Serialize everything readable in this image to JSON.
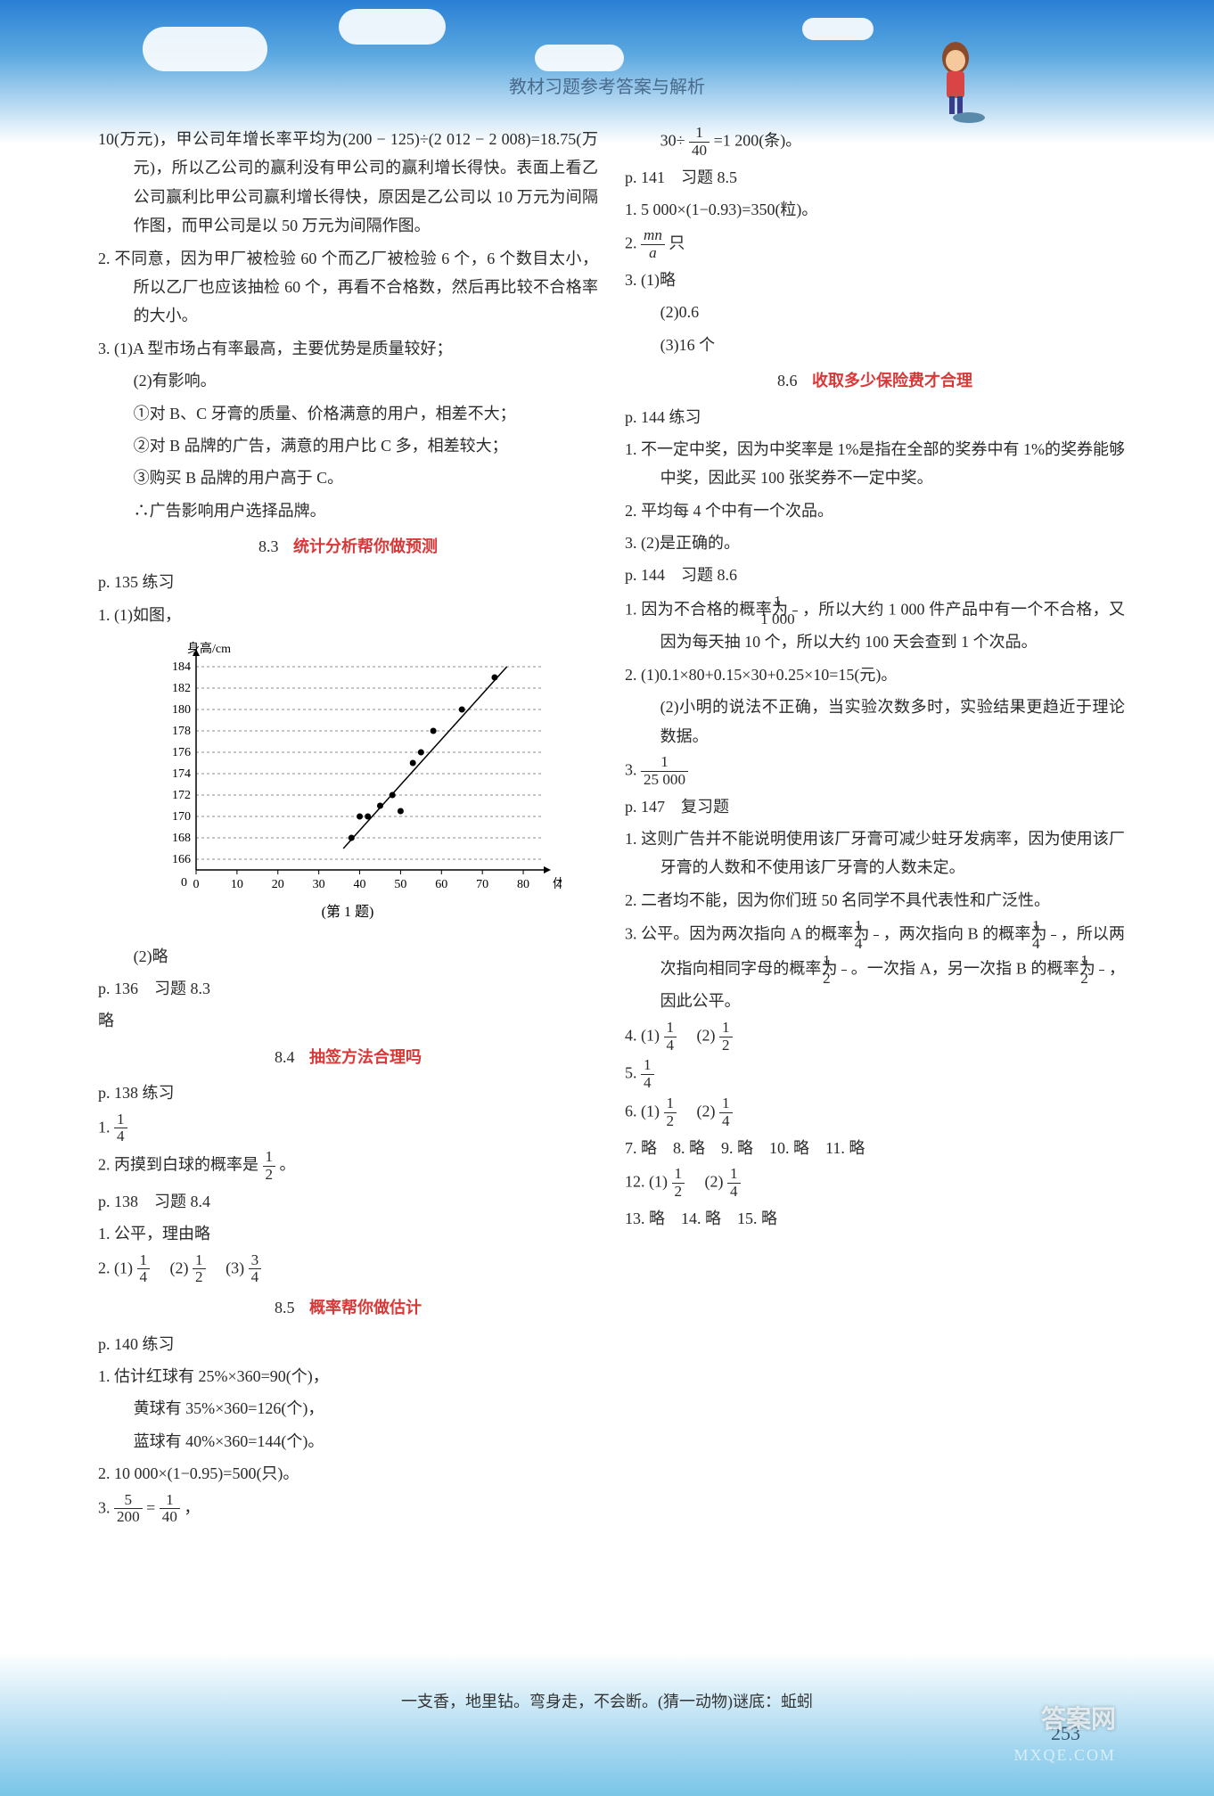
{
  "header": {
    "title": "教材习题参考答案与解析"
  },
  "left": {
    "p1": "10(万元)，甲公司年增长率平均为(200 − 125)÷(2 012 − 2 008)=18.75(万元)，所以乙公司的赢利没有甲公司的赢利增长得快。表面上看乙公司赢利比甲公司赢利增长得快，原因是乙公司以 10 万元为间隔作图，而甲公司是以 50 万元为间隔作图。",
    "p2": "2. 不同意，因为甲厂被检验 60 个而乙厂被检验 6 个，6 个数目太小，所以乙厂也应该抽检 60 个，再看不合格数，然后再比较不合格率的大小。",
    "p3a": "3. (1)A 型市场占有率最高，主要优势是质量较好；",
    "p3b": "(2)有影响。",
    "p3c": "①对 B、C 牙膏的质量、价格满意的用户，相差不大；",
    "p3d": "②对 B 品牌的广告，满意的用户比 C 多，相差较大；",
    "p3e": "③购买 B 品牌的用户高于 C。",
    "p3f": "∴广告影响用户选择品牌。",
    "sec83_num": "8.3",
    "sec83_name": "统计分析帮你做预测",
    "p135": "p. 135 练习",
    "p135_1": "1. (1)如图，",
    "chart": {
      "type": "scatter",
      "ylabel": "身高/cm",
      "xlabel": "体重/kg",
      "caption": "(第 1 题)",
      "y_ticks": [
        166,
        168,
        170,
        172,
        174,
        176,
        178,
        180,
        182,
        184
      ],
      "x_ticks": [
        0,
        10,
        20,
        30,
        40,
        50,
        60,
        70,
        80
      ],
      "ylim": [
        165,
        185
      ],
      "xlim": [
        0,
        85
      ],
      "points": [
        [
          38,
          168
        ],
        [
          40,
          170
        ],
        [
          42,
          170
        ],
        [
          45,
          171
        ],
        [
          48,
          172
        ],
        [
          50,
          170.5
        ],
        [
          53,
          175
        ],
        [
          55,
          176
        ],
        [
          58,
          178
        ],
        [
          65,
          180
        ],
        [
          73,
          183
        ]
      ],
      "line": [
        [
          36,
          167
        ],
        [
          76,
          184
        ]
      ],
      "axis_color": "#000000",
      "point_color": "#000000",
      "line_color": "#000000",
      "background": "#ffffff",
      "label_fontsize": 14
    },
    "p135_2": "(2)略",
    "p136": "p. 136　习题 8.3",
    "p136_a": "略",
    "sec84_num": "8.4",
    "sec84_name": "抽签方法合理吗",
    "p138a": "p. 138 练习",
    "p138_1_pre": "1. ",
    "p138_1_num": "1",
    "p138_1_den": "4",
    "p138_2_pre": "2. 丙摸到白球的概率是",
    "p138_2_num": "1",
    "p138_2_den": "2",
    "p138_2_post": "。",
    "p138b": "p. 138　习题 8.4",
    "p138b_1": "1. 公平，理由略",
    "p138b_2_pre": "2. (1)",
    "p138b_2a_n": "1",
    "p138b_2a_d": "4",
    "p138b_2b_pre": "(2)",
    "p138b_2b_n": "1",
    "p138b_2b_d": "2",
    "p138b_2c_pre": "(3)",
    "p138b_2c_n": "3",
    "p138b_2c_d": "4",
    "sec85_num": "8.5",
    "sec85_name": "概率帮你做估计",
    "p140": "p. 140 练习",
    "p140_1a": "1. 估计红球有 25%×360=90(个)，",
    "p140_1b": "黄球有 35%×360=126(个)，",
    "p140_1c": "蓝球有 40%×360=144(个)。",
    "p140_2": "2. 10 000×(1−0.95)=500(只)。",
    "p140_3_pre": "3. ",
    "p140_3a_n": "5",
    "p140_3a_d": "200",
    "p140_3_mid": "=",
    "p140_3b_n": "1",
    "p140_3b_d": "40",
    "p140_3_post": "，"
  },
  "right": {
    "r0_pre": "30÷",
    "r0_n": "1",
    "r0_d": "40",
    "r0_post": "=1 200(条)。",
    "p141": "p. 141　习题 8.5",
    "p141_1": "1. 5 000×(1−0.93)=350(粒)。",
    "p141_2_pre": "2. ",
    "p141_2_n": "mn",
    "p141_2_d": "a",
    "p141_2_post": "只",
    "p141_3a": "3. (1)略",
    "p141_3b": "(2)0.6",
    "p141_3c": "(3)16 个",
    "sec86_num": "8.6",
    "sec86_name": "收取多少保险费才合理",
    "p144a": "p. 144 练习",
    "p144_1": "1. 不一定中奖，因为中奖率是 1%是指在全部的奖券中有 1%的奖券能够中奖，因此买 100 张奖券不一定中奖。",
    "p144_2": "2. 平均每 4 个中有一个次品。",
    "p144_3": "3. (2)是正确的。",
    "p144b": "p. 144　习题 8.6",
    "p144b_1_pre": "1. 因为不合格的概率为",
    "p144b_1a_n": "1",
    "p144b_1a_d": "1 000",
    "p144b_1_mid": "，所以大约 1 000 件产品中有一个不合格，又因为每天抽 10 个，所以大约 100 天会查到 1 个次品。",
    "p144b_2a": "2. (1)0.1×80+0.15×30+0.25×10=15(元)。",
    "p144b_2b": "(2)小明的说法不正确，当实验次数多时，实验结果更趋近于理论数据。",
    "p144b_3_pre": "3. ",
    "p144b_3_n": "1",
    "p144b_3_d": "25 000",
    "p147": "p. 147　复习题",
    "p147_1": "1. 这则广告并不能说明使用该厂牙膏可减少蛀牙发病率，因为使用该厂牙膏的人数和不使用该厂牙膏的人数未定。",
    "p147_2": "2. 二者均不能，因为你们班 50 名同学不具代表性和广泛性。",
    "p147_3_a": "3. 公平。因为两次指向 A 的概率为",
    "p147_3_an": "1",
    "p147_3_ad": "4",
    "p147_3_b": "，两次指向 B 的概率为",
    "p147_3_bn": "1",
    "p147_3_bd": "4",
    "p147_3_c": "，所以两次指向相同字母的概率为",
    "p147_3_cn": "1",
    "p147_3_cd": "2",
    "p147_3_d": "。一次指 A，另一次指 B 的概率为",
    "p147_3_dn": "1",
    "p147_3_dd": "2",
    "p147_3_e": "，因此公平。",
    "p147_4_pre": "4. (1)",
    "p147_4a_n": "1",
    "p147_4a_d": "4",
    "p147_4b_pre": "(2)",
    "p147_4b_n": "1",
    "p147_4b_d": "2",
    "p147_5_pre": "5. ",
    "p147_5_n": "1",
    "p147_5_d": "4",
    "p147_6_pre": "6. (1)",
    "p147_6a_n": "1",
    "p147_6a_d": "2",
    "p147_6b_pre": "(2)",
    "p147_6b_n": "1",
    "p147_6b_d": "4",
    "p147_7": "7. 略　8. 略　9. 略　10. 略　11. 略",
    "p147_12_pre": "12. (1)",
    "p147_12a_n": "1",
    "p147_12a_d": "2",
    "p147_12b_pre": "(2)",
    "p147_12b_n": "1",
    "p147_12b_d": "4",
    "p147_13": "13. 略　14. 略　15. 略"
  },
  "footer": {
    "riddle": "一支香，地里钻。弯身走，不会断。(猜一动物)谜底：蚯蚓",
    "page_num": "253",
    "wm1": "答案网",
    "wm2": "MXQE.COM"
  }
}
